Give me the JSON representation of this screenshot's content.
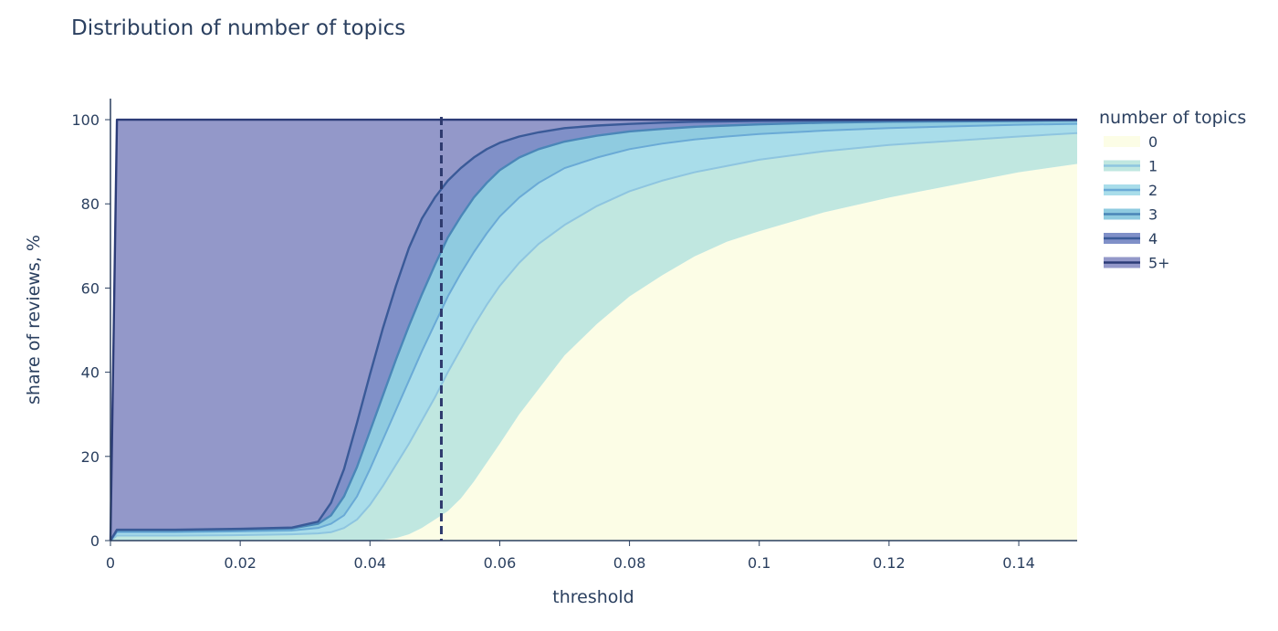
{
  "chart_data": {
    "type": "area",
    "title": "Distribution of number of topics",
    "xlabel": "threshold",
    "ylabel": "share of reviews, %",
    "xlim": [
      0,
      0.149
    ],
    "ylim": [
      0,
      105
    ],
    "x_ticks": [
      0,
      0.02,
      0.04,
      0.06,
      0.08,
      0.1,
      0.12,
      0.14
    ],
    "x_tick_labels": [
      "0",
      "0.02",
      "0.04",
      "0.06",
      "0.08",
      "0.1",
      "0.12",
      "0.14"
    ],
    "y_ticks": [
      0,
      20,
      40,
      60,
      80,
      100
    ],
    "y_tick_labels": [
      "0",
      "20",
      "40",
      "60",
      "80",
      "100"
    ],
    "grid": false,
    "stacked": true,
    "legend": {
      "title": "number of topics",
      "placement": "right"
    },
    "vertical_line": {
      "x": 0.051,
      "style": "dashed",
      "color": "#2e3a6e"
    },
    "x": [
      0,
      0.001,
      0.01,
      0.02,
      0.028,
      0.032,
      0.034,
      0.036,
      0.038,
      0.04,
      0.042,
      0.044,
      0.046,
      0.048,
      0.05,
      0.052,
      0.054,
      0.056,
      0.058,
      0.06,
      0.063,
      0.066,
      0.07,
      0.075,
      0.08,
      0.085,
      0.09,
      0.095,
      0.1,
      0.11,
      0.12,
      0.13,
      0.14,
      0.149
    ],
    "series": [
      {
        "name": "0",
        "fill": "#fcfde6",
        "line": "#fcfde6",
        "cumulative": [
          0,
          0,
          0,
          0,
          0,
          0,
          0,
          0,
          0,
          0,
          0.2,
          0.6,
          1.5,
          3,
          5,
          7,
          10,
          14,
          18.5,
          23,
          30,
          36,
          44,
          51.5,
          58,
          63,
          67.5,
          71,
          73.5,
          78,
          81.5,
          84.5,
          87.5,
          89.5
        ]
      },
      {
        "name": "1",
        "fill": "#c0e7e0",
        "line": "#8ec5e0",
        "cumulative": [
          0,
          1.2,
          1.2,
          1.3,
          1.5,
          1.7,
          2,
          3,
          5,
          8.5,
          13,
          18,
          23,
          28.5,
          34,
          40,
          45.5,
          51,
          56,
          60.5,
          66,
          70.5,
          75,
          79.5,
          83,
          85.5,
          87.5,
          89,
          90.5,
          92.5,
          94,
          95,
          96,
          96.8
        ]
      },
      {
        "name": "2",
        "fill": "#a9ddea",
        "line": "#6aaad6",
        "cumulative": [
          0,
          2,
          2,
          2.2,
          2.4,
          3,
          4,
          6,
          10.5,
          17,
          24,
          31,
          38,
          45,
          51.5,
          58,
          63.5,
          68.5,
          73,
          77,
          81.5,
          85,
          88.5,
          91,
          93,
          94.3,
          95.3,
          96,
          96.6,
          97.4,
          98,
          98.4,
          98.8,
          99
        ]
      },
      {
        "name": "3",
        "fill": "#8fcbe0",
        "line": "#4a86b8",
        "cumulative": [
          0,
          2.4,
          2.4,
          2.6,
          2.9,
          4,
          6,
          10.5,
          17.5,
          26,
          34.5,
          43,
          51,
          58.5,
          65.5,
          72,
          77,
          81.5,
          85,
          88,
          91,
          93,
          94.8,
          96.2,
          97.2,
          97.8,
          98.3,
          98.6,
          98.9,
          99.3,
          99.5,
          99.6,
          99.7,
          99.8
        ]
      },
      {
        "name": "4",
        "fill": "#8090c8",
        "line": "#3a5a98",
        "cumulative": [
          0,
          2.6,
          2.6,
          2.8,
          3.1,
          4.5,
          9,
          17,
          28,
          39.5,
          50.5,
          60.5,
          69.5,
          76.5,
          81.5,
          85.5,
          88.5,
          91,
          93,
          94.5,
          96,
          97,
          98,
          98.6,
          99,
          99.3,
          99.5,
          99.6,
          99.7,
          99.8,
          99.85,
          99.9,
          99.9,
          99.95
        ]
      },
      {
        "name": "5+",
        "fill": "#9398c9",
        "line": "#2c3c78",
        "cumulative": [
          0,
          100,
          100,
          100,
          100,
          100,
          100,
          100,
          100,
          100,
          100,
          100,
          100,
          100,
          100,
          100,
          100,
          100,
          100,
          100,
          100,
          100,
          100,
          100,
          100,
          100,
          100,
          100,
          100,
          100,
          100,
          100,
          100,
          100
        ]
      }
    ]
  }
}
